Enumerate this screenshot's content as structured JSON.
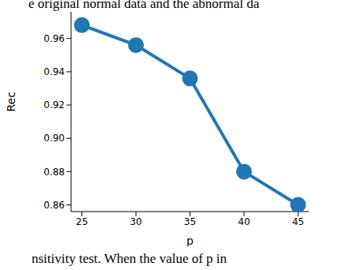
{
  "chart_data": {
    "type": "line",
    "x_label": "p",
    "y_label": "Rec",
    "x": [
      25,
      30,
      35,
      40,
      45
    ],
    "values": [
      0.968,
      0.956,
      0.936,
      0.88,
      0.86
    ],
    "color": "#1f77b4",
    "marker": "o",
    "line_style": "solid",
    "xlim": [
      24,
      46
    ],
    "xticks": [
      25,
      30,
      35,
      40,
      45
    ],
    "ylim": [
      0.856,
      0.976
    ],
    "yticks": [
      0.86,
      0.88,
      {
        "value": 0.9,
        "label": "0.90"
      },
      0.92,
      0.94,
      0.96
    ],
    "grid": false
  },
  "text": {
    "above": "e original normal data and the abnormal da",
    "below": "nsitivity test. When the value of p in"
  }
}
